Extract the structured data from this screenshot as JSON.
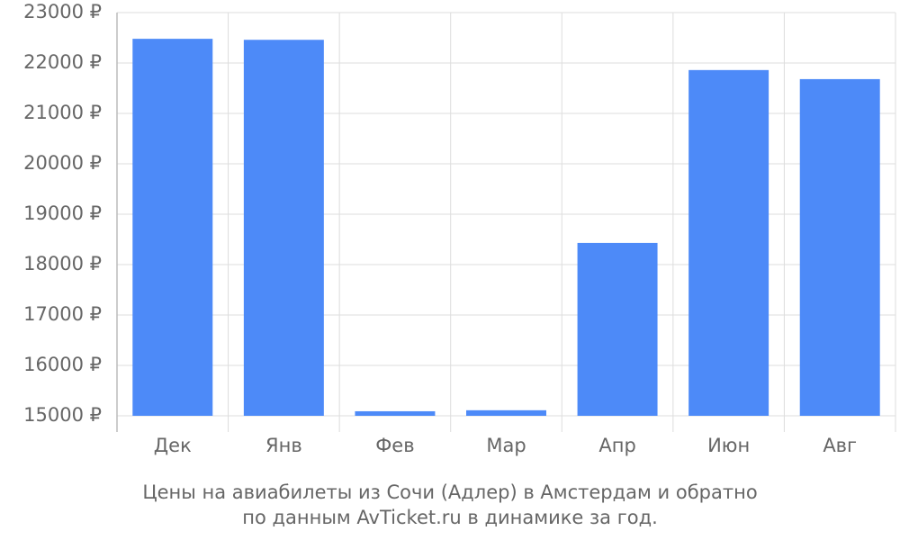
{
  "chart_data": {
    "type": "bar",
    "title": [
      "Цены на авиабилеты из Сочи (Адлер) в Амстердам и обратно",
      "по данным AvTicket.ru в динамике за год."
    ],
    "categories": [
      "Дек",
      "Янв",
      "Фев",
      "Мар",
      "Апр",
      "Июн",
      "Авг"
    ],
    "values": [
      22480,
      22460,
      15090,
      15110,
      18430,
      21860,
      21680
    ],
    "color": "#4d8af8",
    "ylim": [
      15000,
      23000
    ],
    "yticks": [
      {
        "value": 15000,
        "label": "15000 ₽"
      },
      {
        "value": 16000,
        "label": "16000 ₽"
      },
      {
        "value": 17000,
        "label": "17000 ₽"
      },
      {
        "value": 18000,
        "label": "18000 ₽"
      },
      {
        "value": 19000,
        "label": "19000 ₽"
      },
      {
        "value": 20000,
        "label": "20000 ₽"
      },
      {
        "value": 21000,
        "label": "21000 ₽"
      },
      {
        "value": 22000,
        "label": "22000 ₽"
      },
      {
        "value": 23000,
        "label": "23000 ₽"
      }
    ],
    "grid": true
  }
}
